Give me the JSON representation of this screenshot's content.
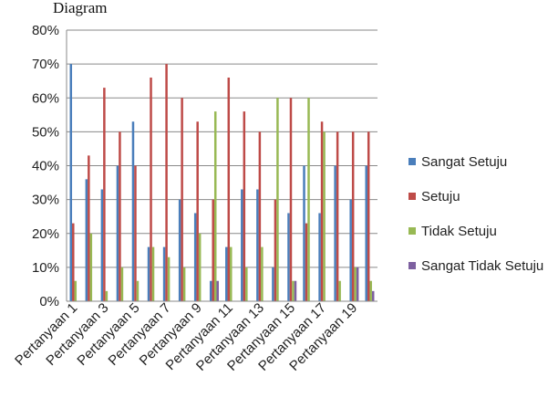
{
  "caption_fragment": "Diagram",
  "chart_data": {
    "type": "bar",
    "categories": [
      "Pertanyaan 1",
      "Pertanyaan 2",
      "Pertanyaan 3",
      "Pertanyaan 4",
      "Pertanyaan 5",
      "Pertanyaan 6",
      "Pertanyaan 7",
      "Pertanyaan 8",
      "Pertanyaan 9",
      "Pertanyaan 10",
      "Pertanyaan 11",
      "Pertanyaan 12",
      "Pertanyaan 13",
      "Pertanyaan 14",
      "Pertanyaan 15",
      "Pertanyaan 16",
      "Pertanyaan 17",
      "Pertanyaan 18",
      "Pertanyaan 19",
      "Pertanyaan 20"
    ],
    "visible_category_labels": [
      "Pertanyaan 1",
      "Pertanyaan 3",
      "Pertanyaan 5",
      "Pertanyaan 7",
      "Pertanyaan 9",
      "Pertanyaan 11",
      "Pertanyaan 13",
      "Pertanyaan 15",
      "Pertanyaan 17",
      "Pertanyaan 19"
    ],
    "series": [
      {
        "name": "Sangat Setuju",
        "color": "#4a7ebb",
        "values": [
          70,
          36,
          33,
          40,
          53,
          16,
          16,
          30,
          26,
          6,
          16,
          33,
          33,
          10,
          26,
          40,
          26,
          40,
          30,
          40
        ]
      },
      {
        "name": "Setuju",
        "color": "#be4b48",
        "values": [
          23,
          43,
          63,
          50,
          40,
          66,
          70,
          60,
          53,
          30,
          66,
          56,
          50,
          30,
          60,
          23,
          53,
          50,
          50,
          50
        ]
      },
      {
        "name": "Tidak Setuju",
        "color": "#98b954",
        "values": [
          6,
          20,
          3,
          10,
          6,
          16,
          13,
          10,
          20,
          56,
          16,
          10,
          16,
          60,
          6,
          60,
          50,
          6,
          10,
          6
        ]
      },
      {
        "name": "Sangat Tidak Setuju",
        "color": "#7d60a0",
        "values": [
          0,
          0,
          0,
          0,
          0,
          0,
          0,
          0,
          0,
          6,
          0,
          0,
          0,
          0,
          6,
          0,
          0,
          0,
          10,
          3
        ]
      }
    ],
    "y_ticks": [
      "0%",
      "10%",
      "20%",
      "30%",
      "40%",
      "50%",
      "60%",
      "70%",
      "80%"
    ],
    "ylim": [
      0,
      80
    ],
    "y_unit": "%",
    "grid": true,
    "legend_position": "right"
  }
}
